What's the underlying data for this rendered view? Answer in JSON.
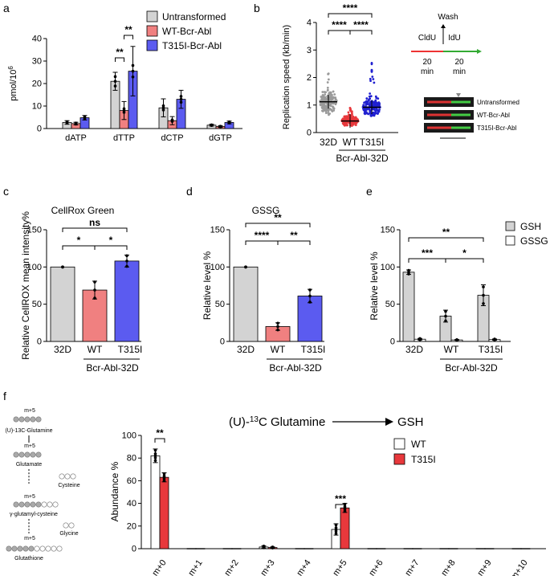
{
  "panel_labels": {
    "a": "a",
    "b": "b",
    "c": "c",
    "d": "d",
    "e": "e",
    "f": "f"
  },
  "colors": {
    "untransformed": "#d3d3d3",
    "wt": "#f08080",
    "t315i": "#5b5bf0",
    "white": "#ffffff",
    "red": "#e8383c",
    "gray_dot": "#9a9a9a",
    "red_dot": "#e8383c",
    "blue_dot": "#2020d0"
  },
  "chart_data": [
    {
      "id": "a",
      "type": "bar",
      "ylabel": "pmol/10^6",
      "ylabel_base": "pmol/10",
      "ylabel_sup": "6",
      "ylim": [
        0,
        40
      ],
      "yticks": [
        "0",
        "10",
        "20",
        "30",
        "40"
      ],
      "categories": [
        "dATP",
        "dTTP",
        "dCTP",
        "dGTP"
      ],
      "series": [
        {
          "name": "Untransformed",
          "values": [
            2.7,
            21,
            9.2,
            1.5
          ],
          "err": [
            0.8,
            4,
            4,
            0.4
          ]
        },
        {
          "name": "WT-Bcr-Abl",
          "values": [
            2.2,
            8,
            3.5,
            0.9
          ],
          "err": [
            0.6,
            4,
            1.8,
            0.4
          ]
        },
        {
          "name": "T315I-Bcr-Abl",
          "values": [
            4.8,
            25.5,
            13,
            2.7
          ],
          "err": [
            1,
            11,
            4,
            0.6
          ]
        }
      ],
      "sig": [
        "**",
        "**"
      ]
    },
    {
      "id": "b",
      "type": "scatter",
      "ylabel": "Replication speed (kb/min)",
      "ylim": [
        0,
        4
      ],
      "yticks": [
        "0",
        "1",
        "2",
        "3",
        "4"
      ],
      "categories": [
        "32D",
        "WT",
        "T315I"
      ],
      "group_label": "Bcr-Abl-32D",
      "medians": [
        1.12,
        0.42,
        0.92
      ],
      "spread": [
        [
          0.3,
          2.2
        ],
        [
          0.05,
          0.9
        ],
        [
          0.3,
          2.6
        ]
      ],
      "sig": [
        "****",
        "****",
        "****"
      ],
      "scheme": {
        "wash": "Wash",
        "cldu": "CldU",
        "idu": "IdU",
        "t1": "20",
        "t1u": "min",
        "t2": "20",
        "t2u": "min"
      },
      "fibers": [
        "Untransformed",
        "WT-Bcr-Abl",
        "T315I-Bcr-Abl"
      ]
    },
    {
      "id": "c",
      "type": "bar",
      "title": "CellRox Green",
      "ylabel": "Relative CellROX mean intensity%",
      "ylim": [
        0,
        150
      ],
      "yticks": [
        "0",
        "50",
        "100",
        "150"
      ],
      "categories": [
        "32D",
        "WT",
        "T315I"
      ],
      "group_label": "Bcr-Abl-32D",
      "values": [
        100,
        69,
        108
      ],
      "err": [
        0,
        12,
        8
      ],
      "sig": [
        "*",
        "*",
        "ns"
      ]
    },
    {
      "id": "d",
      "type": "bar",
      "title": "GSSG",
      "ylabel": "Relative level %",
      "ylim": [
        0,
        150
      ],
      "yticks": [
        "0",
        "50",
        "100",
        "150"
      ],
      "categories": [
        "32D",
        "WT",
        "T315I"
      ],
      "group_label": "Bcr-Abl-32D",
      "values": [
        100,
        20,
        61
      ],
      "err": [
        0,
        5,
        9
      ],
      "sig": [
        "****",
        "**",
        "**"
      ]
    },
    {
      "id": "e",
      "type": "bar",
      "ylabel": "Relative level %",
      "ylim": [
        0,
        150
      ],
      "yticks": [
        "0",
        "50",
        "100",
        "150"
      ],
      "categories": [
        "32D",
        "WT",
        "T315I"
      ],
      "group_label": "Bcr-Abl-32D",
      "series": [
        {
          "name": "GSH",
          "values": [
            93,
            34,
            62
          ],
          "err": [
            3,
            8,
            14
          ]
        },
        {
          "name": "GSSG",
          "values": [
            3,
            2,
            2.5
          ],
          "err": [
            1,
            0.5,
            0.8
          ]
        }
      ],
      "sig": [
        "***",
        "*",
        "**"
      ]
    },
    {
      "id": "f",
      "type": "bar",
      "title_pre": "(U)-",
      "title_sup": "13",
      "title_post": "C Glutamine",
      "title_target": "GSH",
      "ylabel": "Abundance %",
      "ylim": [
        0,
        100
      ],
      "yticks": [
        "0",
        "20",
        "40",
        "60",
        "80",
        "100"
      ],
      "categories": [
        "m+0",
        "m+1",
        "m+2",
        "m+3",
        "m+4",
        "m+5",
        "m+6",
        "m+7",
        "m+8",
        "m+9",
        "m+10"
      ],
      "series": [
        {
          "name": "WT",
          "values": [
            82,
            0.2,
            0.2,
            1.5,
            0.2,
            17,
            0.2,
            0.2,
            0.2,
            0.2,
            0.2
          ],
          "err": [
            6,
            0,
            0,
            1,
            0,
            5,
            0,
            0,
            0,
            0,
            0
          ]
        },
        {
          "name": "T315I",
          "values": [
            63,
            0.2,
            0.2,
            1,
            0.2,
            36,
            0.2,
            0.2,
            0.2,
            0.2,
            0.2
          ],
          "err": [
            4,
            0,
            0,
            0.6,
            0,
            4,
            0,
            0,
            0,
            0,
            0
          ]
        }
      ],
      "sig": [
        "**",
        "***"
      ],
      "pathway": {
        "m5": "m+5",
        "glutamine": "(U)-13C-Glutamine",
        "glutamate": "Glutamate",
        "cysteine": "Cysteine",
        "gcys": "γ-glutamyl-cysteine",
        "glycine": "Glycine",
        "glutathione": "Glutathione"
      }
    }
  ]
}
